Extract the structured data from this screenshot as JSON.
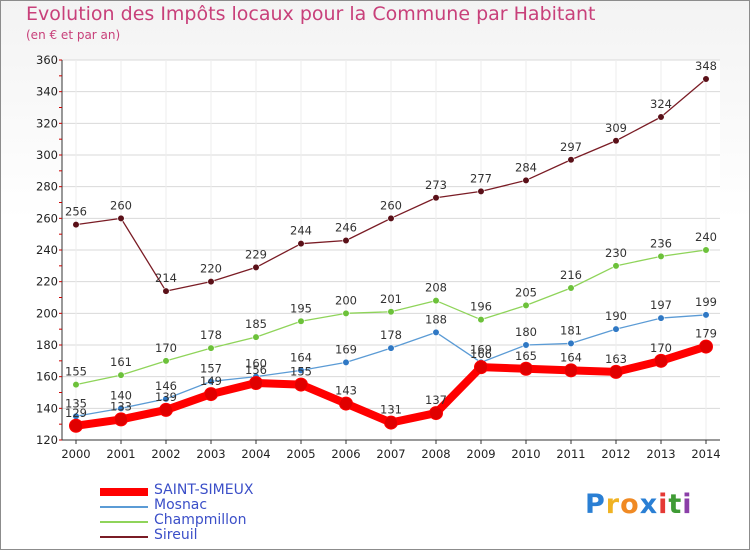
{
  "header": {
    "title": "Evolution des Impôts locaux pour la Commune par Habitant",
    "subtitle": "(en € et par an)"
  },
  "logo": {
    "text": "Proxiti"
  },
  "colors": {
    "title": "#c8407a",
    "grid": "#d9d9d9",
    "axis": "#333333",
    "legend_text": "#3b4fc8",
    "logo_letters": [
      "#2a7fd4",
      "#f0b323",
      "#f08a24",
      "#2a7fd4",
      "#e53935",
      "#3f9b35",
      "#8b3fa8"
    ]
  },
  "chart_data": {
    "type": "line",
    "title": "Evolution des Impôts locaux pour la Commune par Habitant",
    "subtitle": "(en € et par an)",
    "xlabel": "",
    "ylabel": "",
    "x": [
      "2000",
      "2001",
      "2002",
      "2003",
      "2004",
      "2005",
      "2006",
      "2007",
      "2008",
      "2009",
      "2010",
      "2011",
      "2012",
      "2013",
      "2014"
    ],
    "ylim": [
      120,
      360
    ],
    "yticks": [
      120,
      140,
      160,
      180,
      200,
      220,
      240,
      260,
      280,
      300,
      320,
      340,
      360
    ],
    "grid": true,
    "legend": "bottom-left",
    "series": [
      {
        "name": "Sireuil",
        "color": "#7a1c25",
        "marker": "#5a1018",
        "values": [
          256,
          260,
          214,
          220,
          229,
          244,
          246,
          260,
          273,
          277,
          284,
          297,
          309,
          324,
          348
        ]
      },
      {
        "name": "Champmillon",
        "color": "#8fd45a",
        "marker": "#6cc13a",
        "values": [
          155,
          161,
          170,
          178,
          185,
          195,
          200,
          201,
          208,
          196,
          205,
          216,
          230,
          236,
          240
        ]
      },
      {
        "name": "Mosnac",
        "color": "#5b9bd5",
        "marker": "#2f78c4",
        "values": [
          135,
          140,
          146,
          157,
          160,
          164,
          169,
          178,
          188,
          169,
          180,
          181,
          190,
          197,
          199
        ]
      },
      {
        "name": "SAINT-SIMEUX",
        "color": "#ff0000",
        "marker": "#e00000",
        "values": [
          129,
          133,
          139,
          149,
          156,
          155,
          143,
          131,
          137,
          166,
          165,
          164,
          163,
          170,
          179
        ]
      }
    ]
  }
}
